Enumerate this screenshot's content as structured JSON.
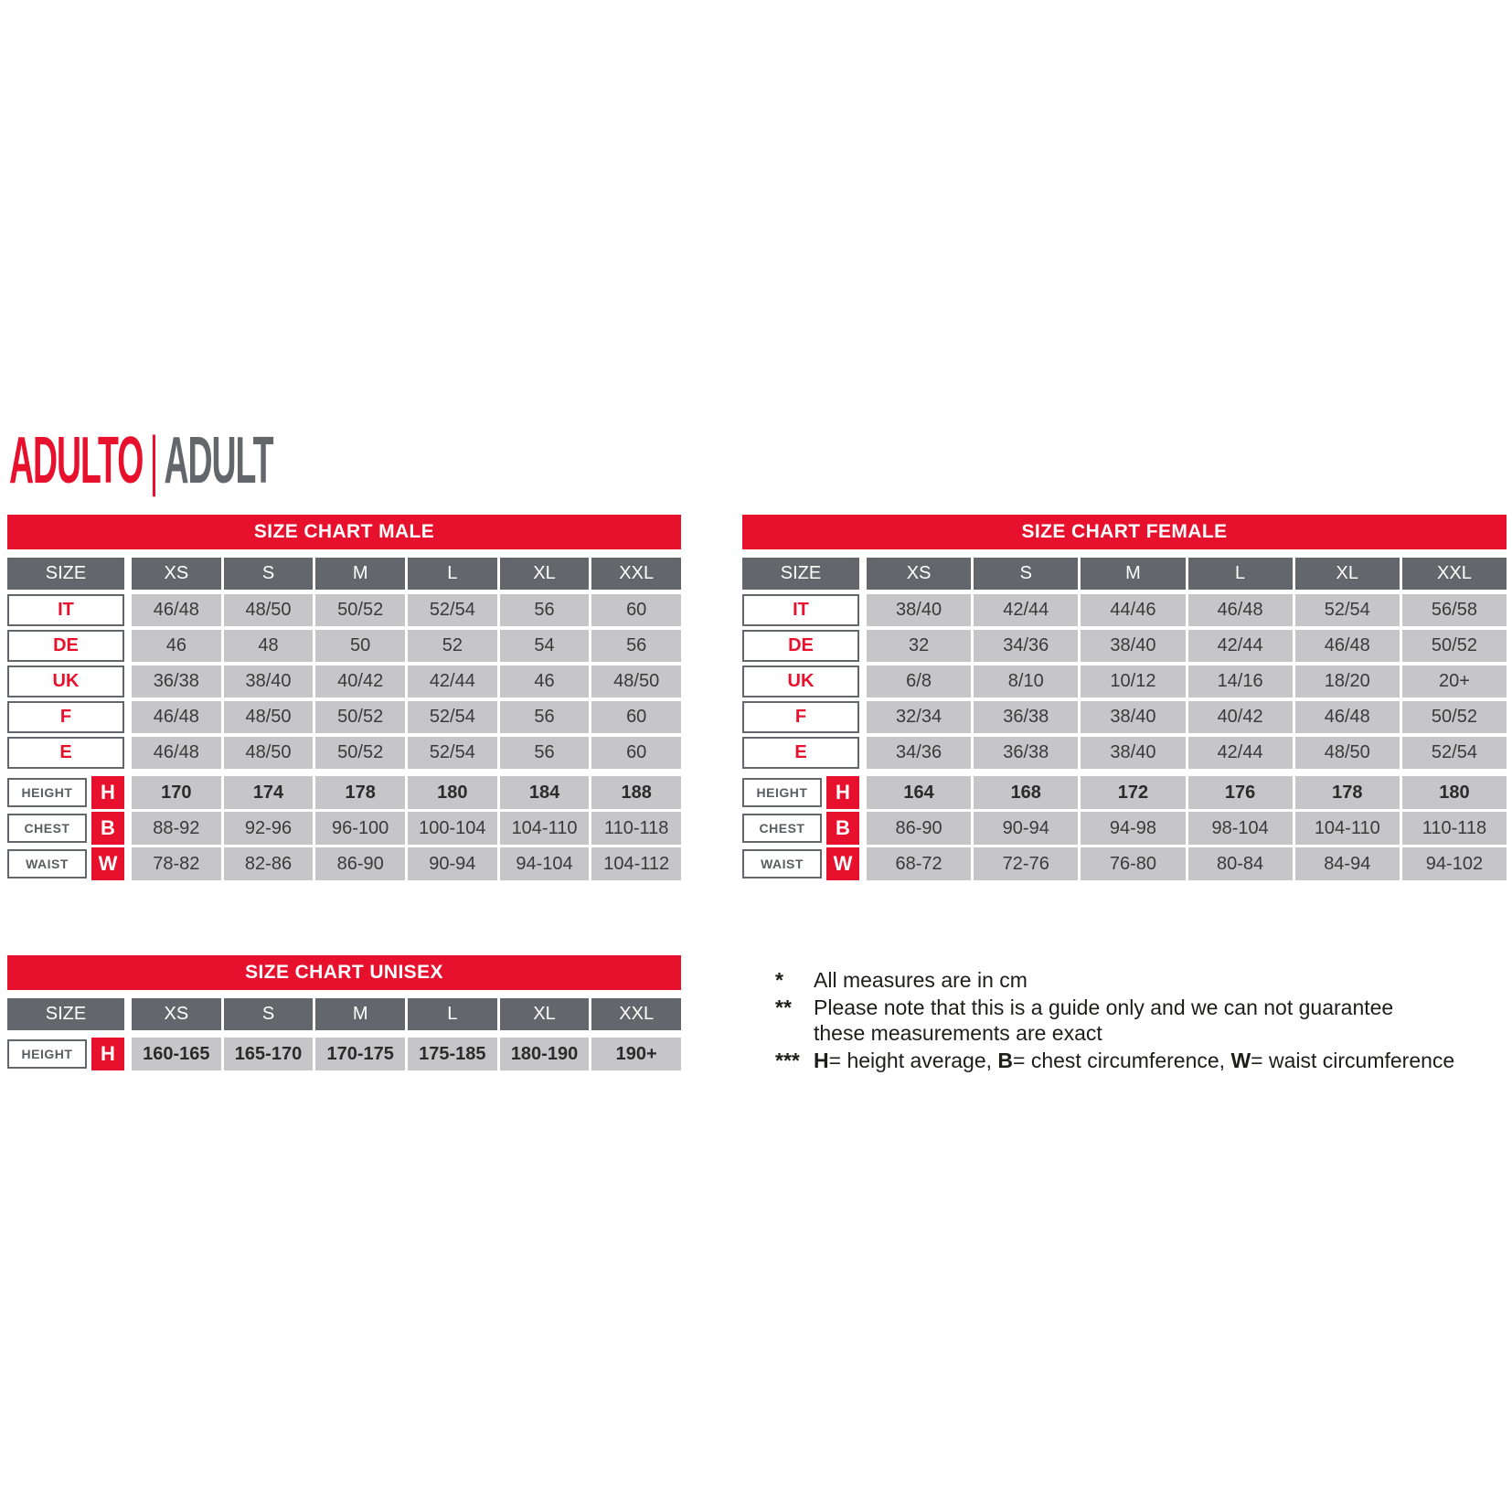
{
  "title": {
    "primary": "ADULTO",
    "separator": "|",
    "secondary": "ADULT"
  },
  "colors": {
    "accent_red": "#e8112d",
    "header_gray": "#63666a",
    "cell_gray": "#c6c6c8",
    "text_dark": "#3a3a39"
  },
  "tables": {
    "male": {
      "title": "SIZE CHART MALE",
      "size_header": "SIZE",
      "columns": [
        "XS",
        "S",
        "M",
        "L",
        "XL",
        "XXL"
      ],
      "rows": [
        {
          "label": "IT",
          "values": [
            "46/48",
            "48/50",
            "50/52",
            "52/54",
            "56",
            "60"
          ]
        },
        {
          "label": "DE",
          "values": [
            "46",
            "48",
            "50",
            "52",
            "54",
            "56"
          ]
        },
        {
          "label": "UK",
          "values": [
            "36/38",
            "38/40",
            "40/42",
            "42/44",
            "46",
            "48/50"
          ]
        },
        {
          "label": "F",
          "values": [
            "46/48",
            "48/50",
            "50/52",
            "52/54",
            "56",
            "60"
          ]
        },
        {
          "label": "E",
          "values": [
            "46/48",
            "48/50",
            "50/52",
            "52/54",
            "56",
            "60"
          ]
        }
      ],
      "measure_rows": [
        {
          "label": "HEIGHT",
          "badge": "H",
          "bold": true,
          "values": [
            "170",
            "174",
            "178",
            "180",
            "184",
            "188"
          ]
        },
        {
          "label": "CHEST",
          "badge": "B",
          "bold": false,
          "values": [
            "88-92",
            "92-96",
            "96-100",
            "100-104",
            "104-110",
            "110-118"
          ]
        },
        {
          "label": "WAIST",
          "badge": "W",
          "bold": false,
          "values": [
            "78-82",
            "82-86",
            "86-90",
            "90-94",
            "94-104",
            "104-112"
          ]
        }
      ]
    },
    "female": {
      "title": "SIZE CHART FEMALE",
      "size_header": "SIZE",
      "columns": [
        "XS",
        "S",
        "M",
        "L",
        "XL",
        "XXL"
      ],
      "rows": [
        {
          "label": "IT",
          "values": [
            "38/40",
            "42/44",
            "44/46",
            "46/48",
            "52/54",
            "56/58"
          ]
        },
        {
          "label": "DE",
          "values": [
            "32",
            "34/36",
            "38/40",
            "42/44",
            "46/48",
            "50/52"
          ]
        },
        {
          "label": "UK",
          "values": [
            "6/8",
            "8/10",
            "10/12",
            "14/16",
            "18/20",
            "20+"
          ]
        },
        {
          "label": "F",
          "values": [
            "32/34",
            "36/38",
            "38/40",
            "40/42",
            "46/48",
            "50/52"
          ]
        },
        {
          "label": "E",
          "values": [
            "34/36",
            "36/38",
            "38/40",
            "42/44",
            "48/50",
            "52/54"
          ]
        }
      ],
      "measure_rows": [
        {
          "label": "HEIGHT",
          "badge": "H",
          "bold": true,
          "values": [
            "164",
            "168",
            "172",
            "176",
            "178",
            "180"
          ]
        },
        {
          "label": "CHEST",
          "badge": "B",
          "bold": false,
          "values": [
            "86-90",
            "90-94",
            "94-98",
            "98-104",
            "104-110",
            "110-118"
          ]
        },
        {
          "label": "WAIST",
          "badge": "W",
          "bold": false,
          "values": [
            "68-72",
            "72-76",
            "76-80",
            "80-84",
            "84-94",
            "94-102"
          ]
        }
      ]
    },
    "unisex": {
      "title": "SIZE CHART UNISEX",
      "size_header": "SIZE",
      "columns": [
        "XS",
        "S",
        "M",
        "L",
        "XL",
        "XXL"
      ],
      "rows": [],
      "measure_rows": [
        {
          "label": "HEIGHT",
          "badge": "H",
          "bold": true,
          "values": [
            "160-165",
            "165-170",
            "170-175",
            "175-185",
            "180-190",
            "190+"
          ]
        }
      ]
    }
  },
  "footnotes": {
    "f1": {
      "marker": "*",
      "text": "All measures are in cm"
    },
    "f2": {
      "marker": "**",
      "text": "Please note that this is a guide only and we can not guarantee these measurements are exact"
    },
    "f3": {
      "marker": "***",
      "h": "H",
      "h_rest": "= height average, ",
      "b": "B",
      "b_rest": "= chest circumference, ",
      "w": "W",
      "w_rest": "= waist circumference"
    }
  }
}
